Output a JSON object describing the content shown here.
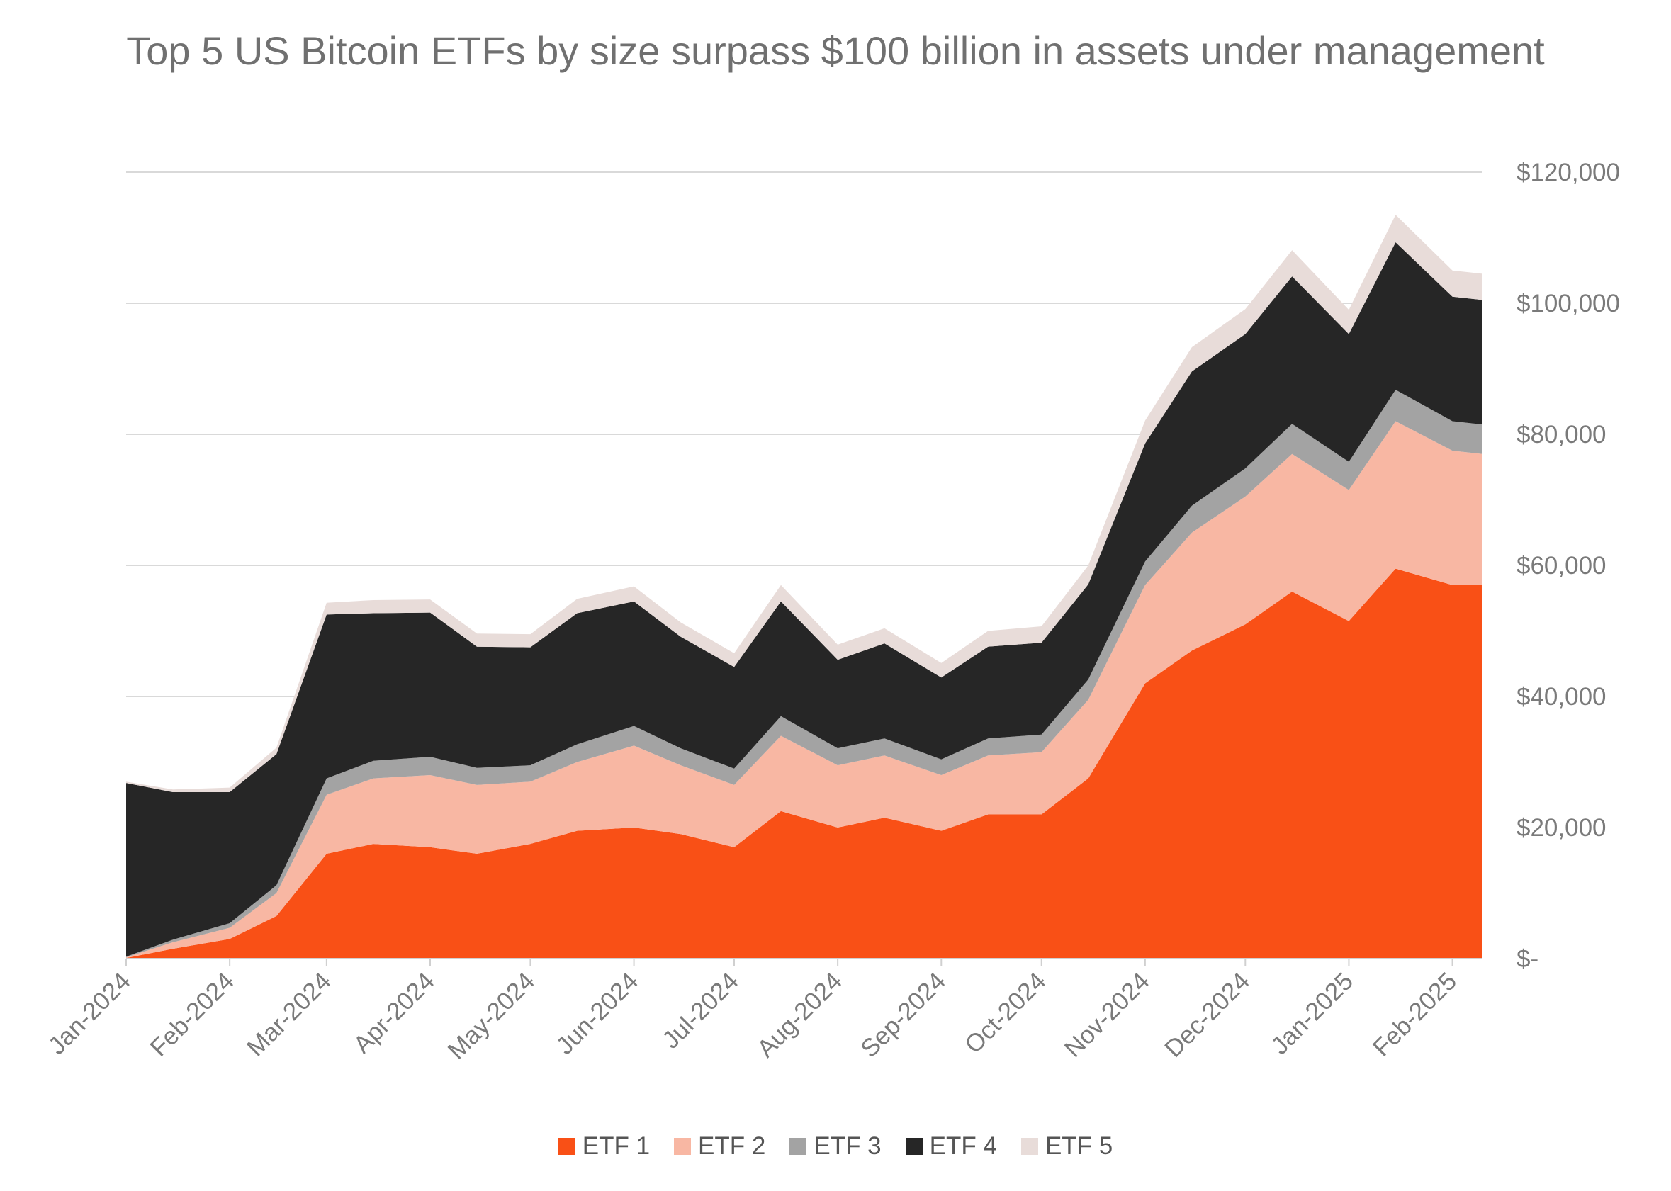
{
  "chart_data": {
    "type": "area",
    "stacked": true,
    "title": "Top 5 US Bitcoin ETFs by size surpass $100 billion in assets under management",
    "xlabel": "",
    "ylabel": "",
    "ylim": [
      0,
      120000
    ],
    "y_ticks": [
      0,
      20000,
      40000,
      60000,
      80000,
      100000,
      120000
    ],
    "y_tick_labels": [
      "$-",
      "$20,000",
      "$40,000",
      "$60,000",
      "$80,000",
      "$100,000",
      "$120,000"
    ],
    "y_axis_side": "right",
    "grid": true,
    "legend_position": "bottom",
    "x_tick_labels": [
      "Jan-2024",
      "Feb-2024",
      "Mar-2024",
      "Apr-2024",
      "May-2024",
      "Jun-2024",
      "Jul-2024",
      "Aug-2024",
      "Sep-2024",
      "Oct-2024",
      "Nov-2024",
      "Dec-2024",
      "Jan-2025",
      "Feb-2025"
    ],
    "x": [
      "2024-01-01",
      "2024-01-15",
      "2024-02-01",
      "2024-02-15",
      "2024-03-01",
      "2024-03-15",
      "2024-04-01",
      "2024-04-15",
      "2024-05-01",
      "2024-05-15",
      "2024-06-01",
      "2024-06-15",
      "2024-07-01",
      "2024-07-15",
      "2024-08-01",
      "2024-08-15",
      "2024-09-01",
      "2024-09-15",
      "2024-10-01",
      "2024-10-15",
      "2024-11-01",
      "2024-11-15",
      "2024-12-01",
      "2024-12-15",
      "2025-01-01",
      "2025-01-15",
      "2025-02-01",
      "2025-02-10"
    ],
    "series": [
      {
        "name": "ETF 1",
        "color": "#f95016",
        "values": [
          100,
          1500,
          3000,
          6500,
          16000,
          17500,
          17000,
          16000,
          17500,
          19500,
          20000,
          19000,
          17000,
          22500,
          20000,
          21500,
          19500,
          22000,
          22000,
          27500,
          42000,
          47000,
          51000,
          56000,
          51500,
          59500,
          57000,
          57000
        ]
      },
      {
        "name": "ETF 2",
        "color": "#f8b7a3",
        "values": [
          100,
          1000,
          1700,
          3500,
          9000,
          10000,
          11000,
          10500,
          9500,
          10500,
          12500,
          10500,
          9500,
          11500,
          9500,
          9500,
          8500,
          9000,
          9500,
          12000,
          15000,
          18000,
          19500,
          21000,
          20000,
          22500,
          20500,
          20000
        ]
      },
      {
        "name": "ETF 3",
        "color": "#a3a3a3",
        "values": [
          100,
          400,
          700,
          1200,
          2500,
          2700,
          2800,
          2600,
          2500,
          2700,
          3000,
          2600,
          2500,
          3000,
          2600,
          2600,
          2400,
          2600,
          2700,
          3100,
          3600,
          4100,
          4300,
          4600,
          4300,
          4800,
          4500,
          4500
        ]
      },
      {
        "name": "ETF 4",
        "color": "#262626",
        "values": [
          26500,
          22500,
          20000,
          20000,
          25000,
          22500,
          22000,
          18500,
          18000,
          20000,
          19000,
          17000,
          15500,
          17500,
          13500,
          14500,
          12500,
          14000,
          14000,
          14500,
          18000,
          20500,
          20500,
          22500,
          19500,
          22500,
          19000,
          19000
        ]
      },
      {
        "name": "ETF 5",
        "color": "#e8dcd9",
        "values": [
          200,
          400,
          700,
          1000,
          1800,
          2000,
          2000,
          2000,
          2000,
          2200,
          2300,
          2200,
          2100,
          2500,
          2300,
          2300,
          2200,
          2400,
          2500,
          2900,
          3500,
          3700,
          3800,
          4000,
          3700,
          4200,
          4000,
          4000
        ]
      }
    ]
  }
}
